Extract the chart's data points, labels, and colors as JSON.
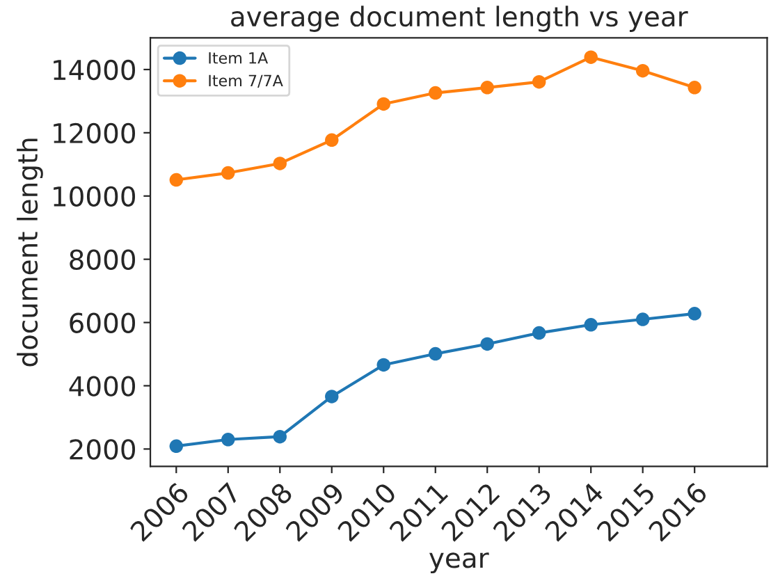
{
  "chart_data": {
    "type": "line",
    "title": "average document length vs year",
    "xlabel": "year",
    "ylabel": "document length",
    "x": [
      2006,
      2007,
      2008,
      2009,
      2010,
      2011,
      2012,
      2013,
      2014,
      2015,
      2016
    ],
    "series": [
      {
        "name": "Item 1A",
        "color": "#1f77b4",
        "values": [
          2090,
          2300,
          2390,
          3660,
          4660,
          5010,
          5320,
          5670,
          5930,
          6100,
          6280
        ]
      },
      {
        "name": "Item 7/7A",
        "color": "#ff7f0e",
        "values": [
          10510,
          10730,
          11030,
          11770,
          12910,
          13260,
          13430,
          13610,
          14390,
          13960,
          13430
        ]
      }
    ],
    "xlim": [
      2005.5,
      2017.4
    ],
    "xticks": [
      2006,
      2007,
      2008,
      2009,
      2010,
      2011,
      2012,
      2013,
      2014,
      2015,
      2016
    ],
    "ylim": [
      1450,
      15000
    ],
    "yticks": [
      2000,
      4000,
      6000,
      8000,
      10000,
      12000,
      14000
    ],
    "marker": "circle",
    "line_style": "solid",
    "legend": "top left",
    "grid": false
  }
}
